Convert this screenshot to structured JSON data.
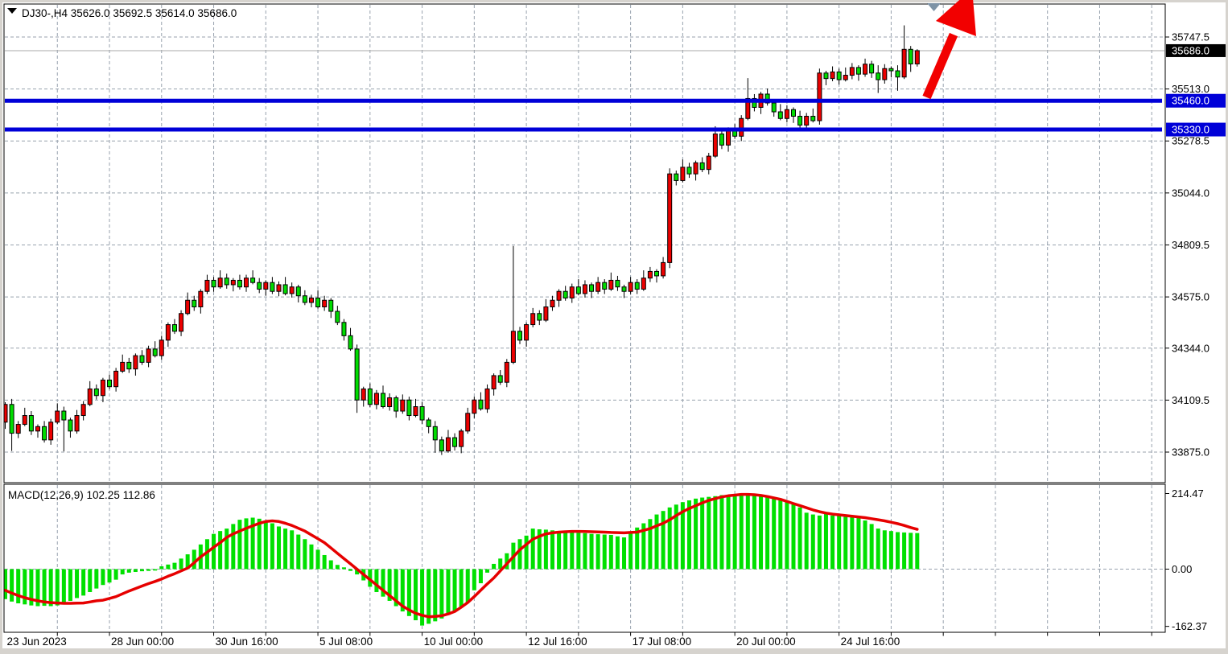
{
  "header": {
    "title_line": "DJ30-,H4  35626.0 35692.5 35614.0 35686.0"
  },
  "macd_panel": {
    "label_line": "MACD(12,26,9) 102.25 112.86"
  },
  "colors": {
    "bull": "#EC0000",
    "bear": "#00DC00",
    "wick": "#000000",
    "level_line": "#0000D8",
    "level_badge_bg": "#0000D8",
    "current_price_line": "#A8A8A8",
    "current_badge_bg": "#000000",
    "macd_histogram": "#00E000",
    "macd_signal": "#E60000",
    "arrow": "#F20000",
    "shift_marker": "#7E93A6",
    "grid": "#98A2AE",
    "plot_border": "#000000",
    "plot_bg": "#FFFFFF",
    "frame_bg": "#D6D3CE"
  },
  "chart_data": {
    "type": "candlestick",
    "symbol": "DJ30-",
    "timeframe": "H4",
    "last_bar": {
      "open": 35626.0,
      "high": 35692.5,
      "low": 35614.0,
      "close": 35686.0
    },
    "grid": "dashed",
    "price_axis_range": [
      33790,
      35810
    ],
    "price_ticks": [
      {
        "label": "35747.5",
        "value": 35747.5
      },
      {
        "label": "35513.0",
        "value": 35513.0
      },
      {
        "label": "35278.5",
        "value": 35278.5
      },
      {
        "label": "35044.0",
        "value": 35044.0
      },
      {
        "label": "34809.5",
        "value": 34809.5
      },
      {
        "label": "34575.0",
        "value": 34575.0
      },
      {
        "label": "34344.0",
        "value": 34344.0
      },
      {
        "label": "34109.5",
        "value": 34109.5
      },
      {
        "label": "33875.0",
        "value": 33875.0
      }
    ],
    "current_price": {
      "label": "35686.0",
      "value": 35686.0
    },
    "levels": [
      {
        "label": "35460.0",
        "value": 35460.0
      },
      {
        "label": "35330.0",
        "value": 35330.0
      }
    ],
    "time_labels": [
      "23 Jun 2023",
      "28 Jun 00:00",
      "30 Jun 16:00",
      "5 Jul 08:00",
      "10 Jul 00:00",
      "12 Jul 16:00",
      "17 Jul 08:00",
      "20 Jul 00:00",
      "24 Jul 16:00"
    ],
    "candles": [
      [
        34010,
        34100,
        33980,
        34090
      ],
      [
        34090,
        34115,
        33880,
        33960
      ],
      [
        33960,
        34015,
        33938,
        34000
      ],
      [
        34000,
        34075,
        33992,
        34040
      ],
      [
        34040,
        34060,
        33952,
        33970
      ],
      [
        33970,
        34000,
        33940,
        33990
      ],
      [
        33990,
        34015,
        33918,
        33930
      ],
      [
        33930,
        34025,
        33908,
        34010
      ],
      [
        34010,
        34095,
        34002,
        34060
      ],
      [
        34060,
        34080,
        33878,
        34020
      ],
      [
        34020,
        34030,
        33940,
        33970
      ],
      [
        33970,
        34065,
        33958,
        34040
      ],
      [
        34040,
        34105,
        34018,
        34090
      ],
      [
        34090,
        34195,
        34082,
        34160
      ],
      [
        34160,
        34180,
        34112,
        34130
      ],
      [
        34130,
        34210,
        34100,
        34200
      ],
      [
        34200,
        34225,
        34158,
        34170
      ],
      [
        34170,
        34255,
        34148,
        34240
      ],
      [
        34240,
        34315,
        34232,
        34280
      ],
      [
        34280,
        34300,
        34232,
        34250
      ],
      [
        34250,
        34320,
        34220,
        34310
      ],
      [
        34310,
        34335,
        34268,
        34280
      ],
      [
        34280,
        34355,
        34258,
        34340
      ],
      [
        34340,
        34375,
        34302,
        34310
      ],
      [
        34310,
        34400,
        34292,
        34380
      ],
      [
        34380,
        34460,
        34350,
        34450
      ],
      [
        34450,
        34475,
        34408,
        34420
      ],
      [
        34420,
        34515,
        34398,
        34500
      ],
      [
        34500,
        34595,
        34492,
        34560
      ],
      [
        34560,
        34580,
        34512,
        34530
      ],
      [
        34530,
        34610,
        34500,
        34600
      ],
      [
        34600,
        34675,
        34588,
        34650
      ],
      [
        34650,
        34665,
        34598,
        34620
      ],
      [
        34620,
        34695,
        34612,
        34660
      ],
      [
        34660,
        34680,
        34612,
        34630
      ],
      [
        34630,
        34660,
        34600,
        34650
      ],
      [
        34650,
        34675,
        34608,
        34620
      ],
      [
        34620,
        34675,
        34598,
        34660
      ],
      [
        34660,
        34695,
        34632,
        34640
      ],
      [
        34640,
        34660,
        34592,
        34610
      ],
      [
        34610,
        34650,
        34580,
        34640
      ],
      [
        34640,
        34665,
        34588,
        34600
      ],
      [
        34600,
        34645,
        34578,
        34630
      ],
      [
        34630,
        34665,
        34582,
        34590
      ],
      [
        34590,
        34640,
        34572,
        34620
      ],
      [
        34620,
        34630,
        34550,
        34580
      ],
      [
        34580,
        34605,
        34538,
        34550
      ],
      [
        34550,
        34585,
        34528,
        34570
      ],
      [
        34570,
        34605,
        34522,
        34530
      ],
      [
        34530,
        34580,
        34512,
        34560
      ],
      [
        34560,
        34570,
        34480,
        34510
      ],
      [
        34510,
        34535,
        34448,
        34460
      ],
      [
        34460,
        34475,
        34378,
        34400
      ],
      [
        34400,
        34435,
        34332,
        34340
      ],
      [
        34340,
        34360,
        34052,
        34110
      ],
      [
        34110,
        34170,
        34080,
        34160
      ],
      [
        34160,
        34185,
        34078,
        34090
      ],
      [
        34090,
        34155,
        34068,
        34140
      ],
      [
        34140,
        34175,
        34072,
        34080
      ],
      [
        34080,
        34140,
        34062,
        34120
      ],
      [
        34120,
        34130,
        34030,
        34060
      ],
      [
        34060,
        34135,
        34048,
        34110
      ],
      [
        34110,
        34125,
        34018,
        34040
      ],
      [
        34040,
        34115,
        34032,
        34080
      ],
      [
        34080,
        34100,
        34002,
        34020
      ],
      [
        34020,
        34030,
        33960,
        33990
      ],
      [
        33990,
        34015,
        33872,
        33930
      ],
      [
        33930,
        33945,
        33862,
        33880
      ],
      [
        33880,
        33975,
        33872,
        33940
      ],
      [
        33940,
        33960,
        33882,
        33900
      ],
      [
        33900,
        33980,
        33870,
        33970
      ],
      [
        33970,
        34075,
        33958,
        34050
      ],
      [
        34050,
        34125,
        34028,
        34110
      ],
      [
        34110,
        34145,
        34062,
        34070
      ],
      [
        34070,
        34180,
        34052,
        34160
      ],
      [
        34160,
        34230,
        34130,
        34220
      ],
      [
        34220,
        34245,
        34178,
        34190
      ],
      [
        34190,
        34295,
        34168,
        34280
      ],
      [
        34280,
        34805,
        34272,
        34420
      ],
      [
        34420,
        34440,
        34362,
        34380
      ],
      [
        34380,
        34460,
        34350,
        34450
      ],
      [
        34450,
        34525,
        34438,
        34500
      ],
      [
        34500,
        34515,
        34448,
        34470
      ],
      [
        34470,
        34565,
        34462,
        34530
      ],
      [
        34530,
        34580,
        34512,
        34560
      ],
      [
        34560,
        34610,
        34530,
        34600
      ],
      [
        34600,
        34625,
        34558,
        34570
      ],
      [
        34570,
        34635,
        34548,
        34620
      ],
      [
        34620,
        34655,
        34582,
        34590
      ],
      [
        34590,
        34650,
        34572,
        34630
      ],
      [
        34630,
        34640,
        34570,
        34600
      ],
      [
        34600,
        34665,
        34588,
        34640
      ],
      [
        34640,
        34655,
        34588,
        34610
      ],
      [
        34610,
        34685,
        34602,
        34650
      ],
      [
        34650,
        34670,
        34602,
        34620
      ],
      [
        34620,
        34630,
        34570,
        34600
      ],
      [
        34600,
        34665,
        34588,
        34640
      ],
      [
        34640,
        34655,
        34588,
        34610
      ],
      [
        34610,
        34695,
        34602,
        34660
      ],
      [
        34660,
        34710,
        34642,
        34690
      ],
      [
        34690,
        34700,
        34640,
        34670
      ],
      [
        34670,
        34755,
        34658,
        34730
      ],
      [
        34730,
        35155,
        34705,
        35130
      ],
      [
        35130,
        35145,
        35078,
        35100
      ],
      [
        35100,
        35195,
        35092,
        35160
      ],
      [
        35160,
        35180,
        35112,
        35130
      ],
      [
        35130,
        35190,
        35100,
        35180
      ],
      [
        35180,
        35205,
        35138,
        35150
      ],
      [
        35150,
        35225,
        35128,
        35210
      ],
      [
        35210,
        35345,
        35202,
        35310
      ],
      [
        35310,
        35330,
        35242,
        35260
      ],
      [
        35260,
        35340,
        35230,
        35330
      ],
      [
        35330,
        35355,
        35288,
        35300
      ],
      [
        35300,
        35395,
        35278,
        35380
      ],
      [
        35380,
        35562,
        35372,
        35470
      ],
      [
        35470,
        35490,
        35412,
        35430
      ],
      [
        35430,
        35500,
        35400,
        35490
      ],
      [
        35490,
        35515,
        35438,
        35450
      ],
      [
        35450,
        35465,
        35388,
        35410
      ],
      [
        35410,
        35445,
        35372,
        35380
      ],
      [
        35380,
        35440,
        35362,
        35420
      ],
      [
        35420,
        35430,
        35360,
        35390
      ],
      [
        35390,
        35415,
        35338,
        35350
      ],
      [
        35350,
        35405,
        35328,
        35390
      ],
      [
        35390,
        35425,
        35362,
        35370
      ],
      [
        35370,
        35605,
        35352,
        35585
      ],
      [
        35585,
        35595,
        35530,
        35560
      ],
      [
        35560,
        35615,
        35548,
        35590
      ],
      [
        35590,
        35605,
        35533,
        35555
      ],
      [
        35555,
        35610,
        35547,
        35575
      ],
      [
        35575,
        35630,
        35557,
        35610
      ],
      [
        35610,
        35620,
        35550,
        35580
      ],
      [
        35580,
        35650,
        35568,
        35625
      ],
      [
        35625,
        35640,
        35563,
        35585
      ],
      [
        35585,
        35620,
        35495,
        35555
      ],
      [
        35555,
        35625,
        35537,
        35605
      ],
      [
        35605,
        35615,
        35565,
        35595
      ],
      [
        35595,
        35620,
        35505,
        35567
      ],
      [
        35567,
        35800,
        35558,
        35692
      ],
      [
        35692,
        35707,
        35590,
        35626
      ],
      [
        35626,
        35692.5,
        35614,
        35686
      ]
    ],
    "macd": {
      "params": "12,26,9",
      "current_macd": 102.25,
      "current_signal": 112.86,
      "axis_ticks": [
        {
          "label": "214.47",
          "value": 214.47
        },
        {
          "label": "0.00",
          "value": 0
        },
        {
          "label": "-162.37",
          "value": -162.37
        }
      ],
      "histogram": [
        -85,
        -92,
        -97,
        -100,
        -103,
        -105,
        -104,
        -105,
        -103,
        -98,
        -90,
        -82,
        -75,
        -65,
        -55,
        -45,
        -38,
        -30,
        -15,
        -10,
        -8,
        -6,
        -5,
        -4,
        8,
        13,
        18,
        30,
        42,
        55,
        70,
        85,
        100,
        108,
        115,
        128,
        140,
        144,
        146,
        143,
        137,
        130,
        121,
        115,
        110,
        98,
        85,
        70,
        55,
        40,
        25,
        12,
        5,
        -5,
        -15,
        -32,
        -50,
        -65,
        -78,
        -90,
        -105,
        -120,
        -133,
        -145,
        -160,
        -155,
        -148,
        -140,
        -130,
        -120,
        -108,
        -95,
        -60,
        -40,
        -10,
        15,
        30,
        45,
        75,
        85,
        95,
        115,
        113,
        112,
        110,
        107,
        105,
        104,
        103,
        102,
        100,
        99,
        98,
        97,
        93,
        90,
        105,
        118,
        130,
        142,
        155,
        165,
        175,
        183,
        190,
        195,
        200,
        203,
        205,
        207,
        210,
        211,
        213,
        214,
        214.47,
        213,
        211,
        208,
        204,
        199,
        193,
        188,
        175,
        160,
        155,
        152,
        158,
        152,
        154,
        150,
        148,
        145,
        138,
        128,
        115,
        110,
        108,
        105,
        104,
        103,
        102.25
      ],
      "signal": [
        -60,
        -68,
        -75,
        -81,
        -86,
        -90,
        -93,
        -95,
        -96,
        -97,
        -97,
        -96.5,
        -96,
        -93,
        -90,
        -88,
        -83,
        -78,
        -70,
        -62,
        -55,
        -48,
        -41,
        -35,
        -28,
        -20,
        -13,
        -5,
        3,
        18,
        35,
        48,
        62,
        75,
        90,
        100,
        108,
        116,
        123,
        130,
        135,
        137,
        135,
        130,
        124,
        116,
        108,
        97,
        86,
        75,
        60,
        45,
        30,
        15,
        0,
        -15,
        -30,
        -45,
        -60,
        -75,
        -90,
        -105,
        -116,
        -125,
        -131,
        -135,
        -134,
        -132,
        -127,
        -120,
        -108,
        -95,
        -78,
        -60,
        -42,
        -25,
        -5,
        15,
        35,
        55,
        70,
        85,
        93,
        100,
        103,
        105,
        106,
        107,
        107,
        106.5,
        106,
        105.5,
        105,
        104,
        103.5,
        103,
        104,
        105,
        110,
        115,
        123,
        130,
        140,
        152,
        163,
        172,
        180,
        188,
        195,
        200,
        205,
        208,
        210,
        212,
        212,
        211,
        209,
        206,
        202,
        198,
        192,
        186,
        180,
        174,
        168,
        163,
        159,
        156,
        154,
        152,
        150,
        148,
        146,
        143,
        140,
        137,
        133,
        129,
        124,
        118,
        112.86
      ]
    },
    "annotations": {
      "up_arrow": true,
      "shift_marker": true
    }
  }
}
